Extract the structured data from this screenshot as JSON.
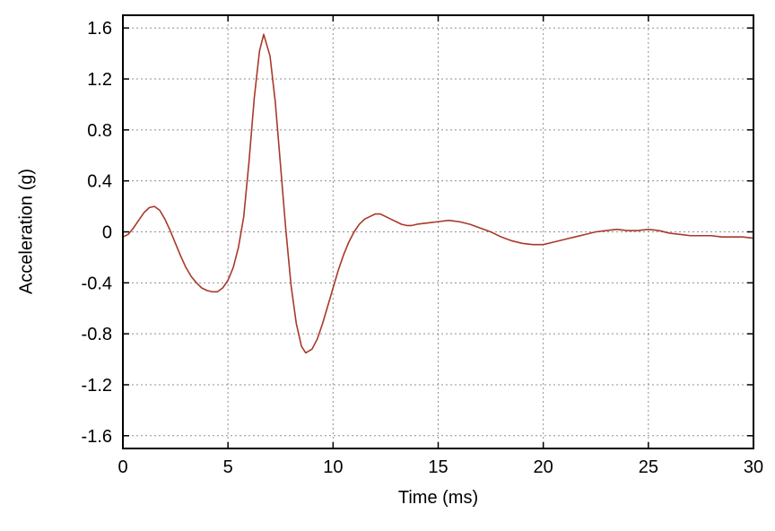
{
  "chart_data": {
    "type": "line",
    "title": "",
    "xlabel": "Time (ms)",
    "ylabel": "Acceleration (g)",
    "xlim": [
      0,
      30
    ],
    "ylim": [
      -1.7,
      1.7
    ],
    "x_ticks": [
      0,
      5,
      10,
      15,
      20,
      25,
      30
    ],
    "x_tick_labels": [
      "0",
      "5",
      "10",
      "15",
      "20",
      "25",
      "30"
    ],
    "y_ticks": [
      -1.6,
      -1.2,
      -0.8,
      -0.4,
      0,
      0.4,
      0.8,
      1.2,
      1.6
    ],
    "y_tick_labels": [
      "-1.6",
      "-1.2",
      "-0.8",
      "-0.4",
      "0",
      "0.4",
      "0.8",
      "1.2",
      "1.6"
    ],
    "grid": "dashed",
    "grid_color": "#8f8f8f",
    "frame_color": "#000000",
    "line_color": "#a8392a",
    "legend": "none",
    "series": [
      {
        "name": "acceleration",
        "x": [
          0,
          0.25,
          0.5,
          0.75,
          1,
          1.25,
          1.5,
          1.75,
          2,
          2.25,
          2.5,
          2.75,
          3,
          3.25,
          3.5,
          3.75,
          4,
          4.25,
          4.5,
          4.75,
          5,
          5.25,
          5.5,
          5.75,
          6,
          6.25,
          6.5,
          6.7,
          7,
          7.25,
          7.5,
          7.75,
          8,
          8.25,
          8.5,
          8.7,
          9,
          9.25,
          9.5,
          9.75,
          10,
          10.25,
          10.5,
          10.75,
          11,
          11.25,
          11.5,
          11.75,
          12,
          12.25,
          12.5,
          12.75,
          13,
          13.25,
          13.5,
          13.75,
          14,
          14.5,
          15,
          15.5,
          16,
          16.5,
          17,
          17.5,
          18,
          18.5,
          19,
          19.5,
          20,
          20.5,
          21,
          21.5,
          22,
          22.5,
          23,
          23.5,
          24,
          24.5,
          25,
          25.5,
          26,
          26.5,
          27,
          27.5,
          28,
          28.5,
          29,
          29.5,
          30
        ],
        "y": [
          -0.04,
          -0.02,
          0.03,
          0.09,
          0.15,
          0.19,
          0.2,
          0.17,
          0.1,
          0.01,
          -0.09,
          -0.19,
          -0.28,
          -0.35,
          -0.4,
          -0.44,
          -0.46,
          -0.47,
          -0.47,
          -0.44,
          -0.38,
          -0.28,
          -0.12,
          0.12,
          0.55,
          1.05,
          1.42,
          1.55,
          1.38,
          1.02,
          0.52,
          0.02,
          -0.42,
          -0.72,
          -0.9,
          -0.95,
          -0.92,
          -0.84,
          -0.72,
          -0.58,
          -0.44,
          -0.3,
          -0.18,
          -0.08,
          0.0,
          0.06,
          0.1,
          0.12,
          0.14,
          0.14,
          0.12,
          0.1,
          0.08,
          0.06,
          0.05,
          0.05,
          0.06,
          0.07,
          0.08,
          0.09,
          0.08,
          0.06,
          0.03,
          0.0,
          -0.04,
          -0.07,
          -0.09,
          -0.1,
          -0.1,
          -0.08,
          -0.06,
          -0.04,
          -0.02,
          0.0,
          0.01,
          0.02,
          0.01,
          0.01,
          0.02,
          0.01,
          -0.01,
          -0.02,
          -0.03,
          -0.03,
          -0.03,
          -0.04,
          -0.04,
          -0.04,
          -0.05
        ]
      }
    ]
  }
}
